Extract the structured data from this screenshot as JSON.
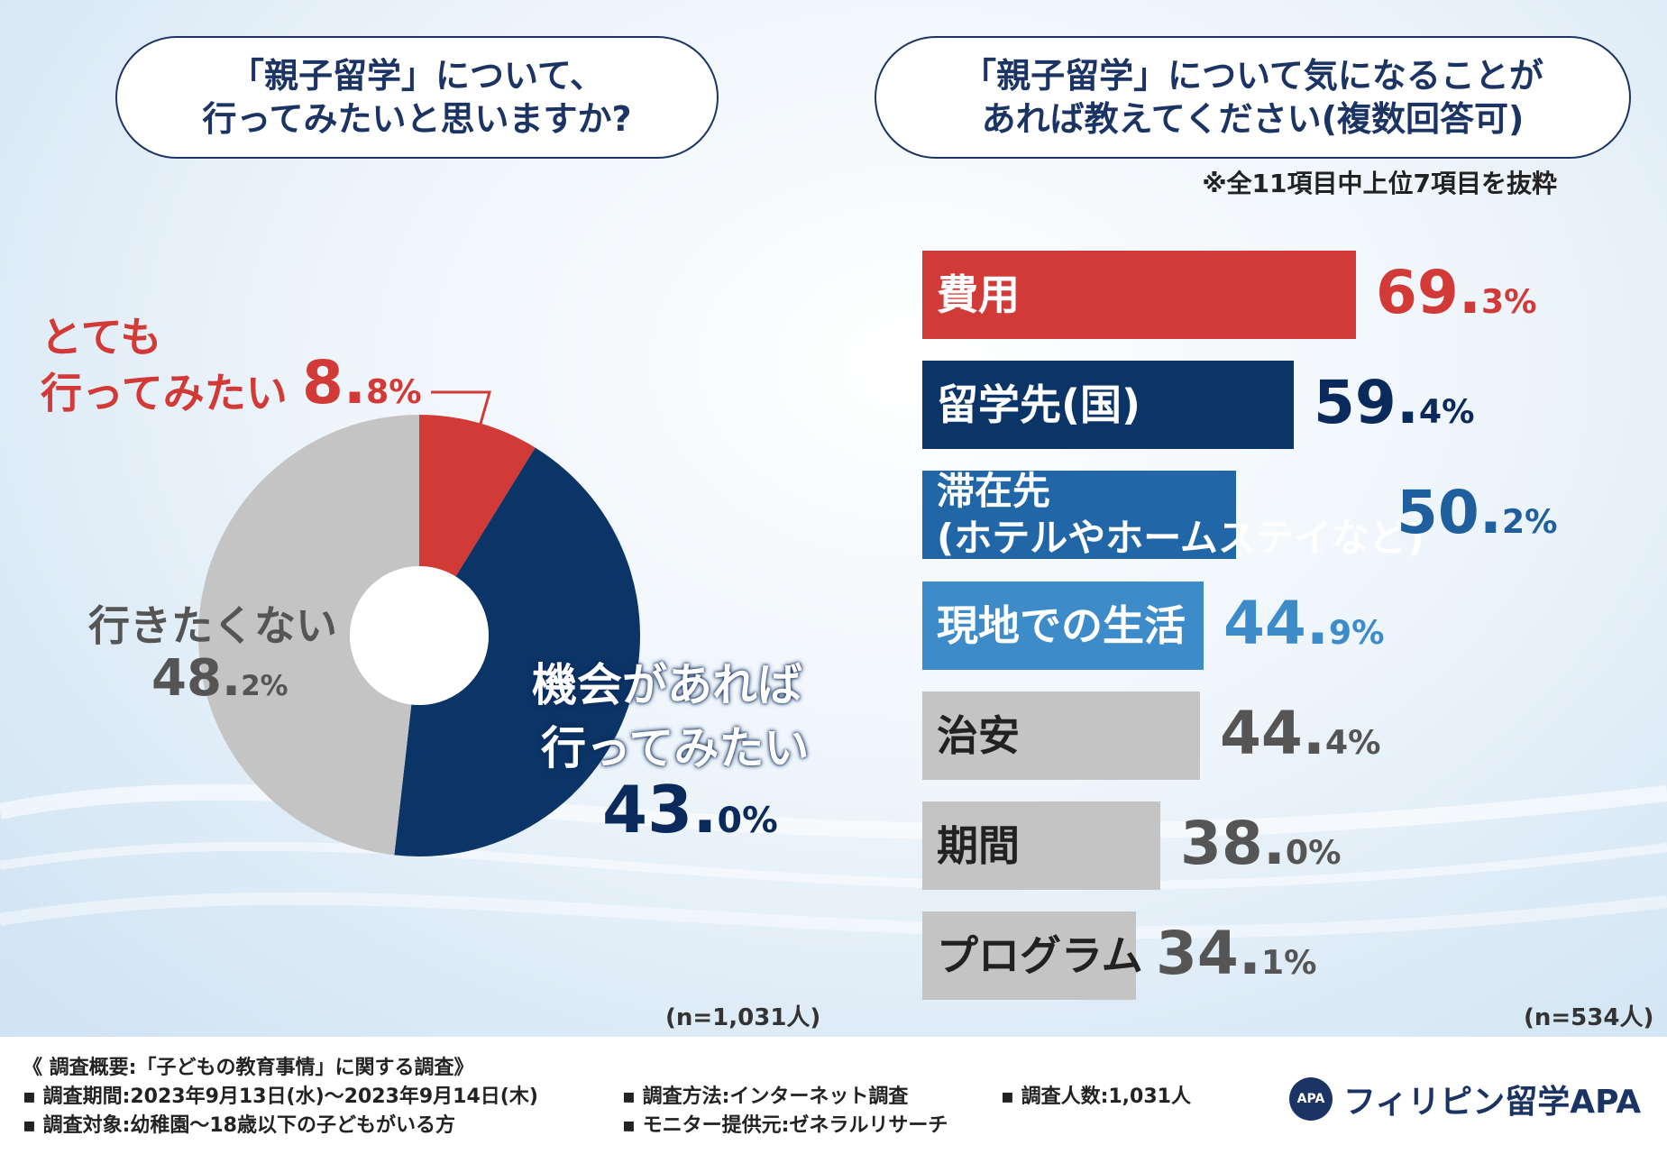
{
  "left_title": [
    "「親子留学」について、",
    "行ってみたいと思いますか?"
  ],
  "right_title": [
    "「親子留学」について気になることが",
    "あれば教えてください(複数回答可)"
  ],
  "note": "※全11項目中上位7項目を抜粋",
  "donut_labels": {
    "very_line1": "とても",
    "very_line2": "行ってみたい",
    "very_pct_int": "8.",
    "very_pct_dec": "8%",
    "not_label": "行きたくない",
    "not_pct_int": "48.",
    "not_pct_dec": "2%",
    "opp_line1": "機会があれば",
    "opp_line2": "行ってみたい",
    "opp_pct_int": "43.",
    "opp_pct_dec": "0%"
  },
  "n_left": "(n=1,031人)",
  "n_right": "(n=534人)",
  "colors": {
    "red": "#d13a36",
    "navy": "#0b3566",
    "blue": "#2166a6",
    "lightblue": "#3d8bc9",
    "gray": "#c4c4c4"
  },
  "chart_data": [
    {
      "type": "pie",
      "categories": [
        "とても行ってみたい",
        "機会があれば行ってみたい",
        "行きたくない"
      ],
      "values": [
        8.8,
        43.0,
        48.2
      ],
      "colors": [
        "#d13a36",
        "#0b3566",
        "#c4c4c4"
      ],
      "n": "1,031"
    },
    {
      "type": "bar",
      "orientation": "horizontal",
      "categories": [
        "費用",
        "留学先(国)",
        "滞在先(ホテルやホームステイなど)",
        "現地での生活",
        "治安",
        "期間",
        "プログラム"
      ],
      "values": [
        69.3,
        59.4,
        50.2,
        44.9,
        44.4,
        38.0,
        34.1
      ],
      "colors": [
        "#d13a36",
        "#0b3566",
        "#2166a6",
        "#3d8bc9",
        "#c4c4c4",
        "#c4c4c4",
        "#c4c4c4"
      ],
      "n": "534"
    }
  ],
  "bars": [
    {
      "label": [
        "費用"
      ],
      "int": "69.",
      "dec": "3%",
      "val_color": "#d13a36",
      "gray": false
    },
    {
      "label": [
        "留学先(国)"
      ],
      "int": "59.",
      "dec": "4%",
      "val_color": "#0b2a5c",
      "gray": false
    },
    {
      "label": [
        "滞在先",
        "(ホテルやホームステイなど)"
      ],
      "int": "50.",
      "dec": "2%",
      "val_color": "#1f5f9e",
      "gray": false
    },
    {
      "label": [
        "現地での生活"
      ],
      "int": "44.",
      "dec": "9%",
      "val_color": "#3d8bc9",
      "gray": false
    },
    {
      "label": [
        "治安"
      ],
      "int": "44.",
      "dec": "4%",
      "val_color": "#555555",
      "gray": true
    },
    {
      "label": [
        "期間"
      ],
      "int": "38.",
      "dec": "0%",
      "val_color": "#555555",
      "gray": true
    },
    {
      "label": [
        "プログラム"
      ],
      "int": "34.",
      "dec": "1%",
      "val_color": "#555555",
      "gray": true
    }
  ],
  "footer": {
    "survey_name": "《 調査概要:「子どもの教育事情」に関する調査》",
    "period": "▪ 調査期間:2023年9月13日(水)〜2023年9月14日(木)",
    "method": "▪ 調査方法:インターネット調査",
    "count": "▪ 調査人数:1,031人",
    "target": "▪ 調査対象:幼稚園〜18歳以下の子どもがいる方",
    "provider": "▪ モニター提供元:ゼネラルリサーチ",
    "logo_text": "フィリピン留学APA",
    "logo_mark": "APA"
  }
}
